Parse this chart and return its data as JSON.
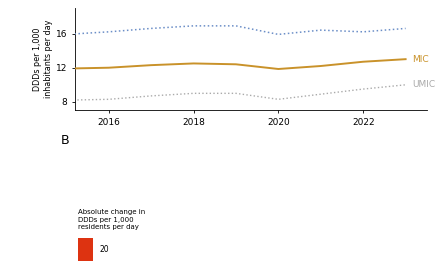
{
  "line_years": [
    2015,
    2016,
    2017,
    2018,
    2019,
    2020,
    2021,
    2022,
    2023
  ],
  "MIC_values": [
    11.9,
    12.0,
    12.3,
    12.5,
    12.4,
    11.85,
    12.2,
    12.7,
    13.0
  ],
  "UMIC_values": [
    8.2,
    8.3,
    8.7,
    9.0,
    9.0,
    8.3,
    8.9,
    9.5,
    10.0
  ],
  "HIC_dotted_values": [
    15.9,
    16.2,
    16.6,
    16.9,
    16.9,
    15.9,
    16.4,
    16.2,
    16.6
  ],
  "MIC_color": "#C9922A",
  "UMIC_color": "#AAAAAA",
  "HIC_color": "#6B8EC7",
  "ylabel": "DDDs per 1,000\ninhabitants per day",
  "yticks": [
    8,
    12,
    16
  ],
  "xlim_min": 2015.2,
  "xlim_max": 2023.5,
  "xticks": [
    2016,
    2018,
    2020,
    2022
  ],
  "ylim_min": 7,
  "ylim_max": 19,
  "label_MIC": "MIC",
  "label_UMIC": "UMIC",
  "panel_B_label": "B",
  "legend_title": "Absolute change in\nDDDs per 1,000\nresidents per day",
  "legend_value": "20",
  "bg_color": "#FFFFFF",
  "map_gray": "#888888",
  "blue_dark": "#5577BB",
  "blue_mid": "#99BBDD",
  "blue_light": "#CCDDF0",
  "red_dark": "#DD3311",
  "red_mid": "#EE7755",
  "red_light": "#FFBBAA",
  "neutral": "#DDDDCC"
}
